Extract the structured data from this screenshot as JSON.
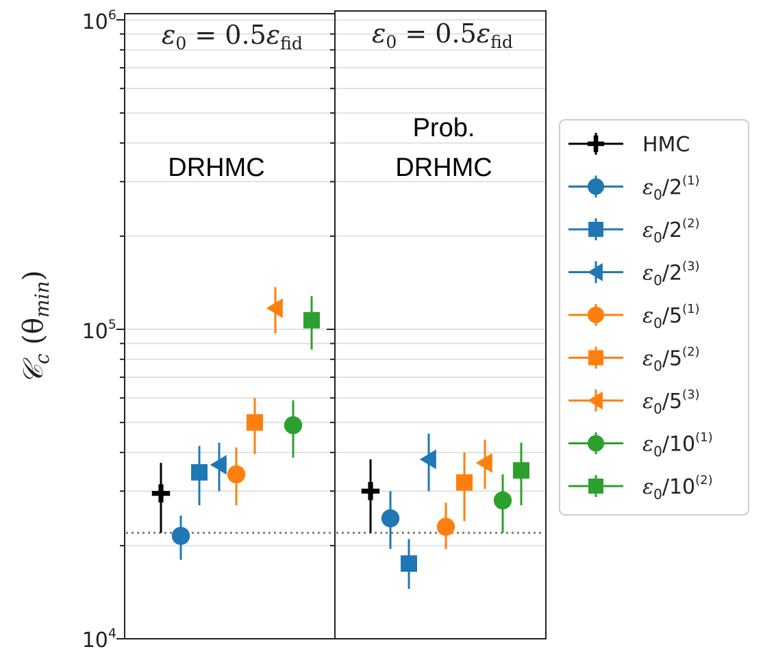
{
  "chart_data": {
    "type": "scatter",
    "yscale": "log",
    "ylim": [
      10000,
      1000000
    ],
    "ylabel": {
      "main": "𝒞",
      "sub1": "c",
      "open": " (θ",
      "sub2": "min",
      "close": ")"
    },
    "yticks": [
      {
        "value": 1000000,
        "base": "10",
        "exp": "6"
      },
      {
        "value": 100000,
        "base": "10",
        "exp": "5"
      },
      {
        "value": 10000,
        "base": "10",
        "exp": "4"
      }
    ],
    "grid": true,
    "legend_placement": "right",
    "reference_line": {
      "value": 22000,
      "style": "dotted",
      "color": "#7f7f7f"
    },
    "panels": [
      {
        "title": {
          "lhs": "ε",
          "lhs_sub": "0",
          "eq": " = 0.5",
          "rhs": "ε",
          "rhs_sub": "fid"
        },
        "annotation": [
          "DRHMC"
        ],
        "points": [
          {
            "series": 0,
            "y": 29500,
            "yerr_low": 22000,
            "yerr_high": 37000
          },
          {
            "series": 1,
            "y": 21500,
            "yerr_low": 18000,
            "yerr_high": 25000
          },
          {
            "series": 2,
            "y": 34500,
            "yerr_low": 27000,
            "yerr_high": 42000
          },
          {
            "series": 3,
            "y": 36500,
            "yerr_low": 30000,
            "yerr_high": 43000
          },
          {
            "series": 4,
            "y": 34000,
            "yerr_low": 27000,
            "yerr_high": 41500
          },
          {
            "series": 5,
            "y": 50000,
            "yerr_low": 39500,
            "yerr_high": 60000
          },
          {
            "series": 6,
            "y": 117000,
            "yerr_low": 97000,
            "yerr_high": 137000
          },
          {
            "series": 7,
            "y": 49000,
            "yerr_low": 38500,
            "yerr_high": 59000
          },
          {
            "series": 8,
            "y": 107000,
            "yerr_low": 86000,
            "yerr_high": 128000
          }
        ]
      },
      {
        "title": {
          "lhs": "ε",
          "lhs_sub": "0",
          "eq": " = 0.5",
          "rhs": "ε",
          "rhs_sub": "fid"
        },
        "annotation": [
          "Prob.",
          "DRHMC"
        ],
        "points": [
          {
            "series": 0,
            "y": 30000,
            "yerr_low": 22000,
            "yerr_high": 38000
          },
          {
            "series": 1,
            "y": 24500,
            "yerr_low": 19500,
            "yerr_high": 30000
          },
          {
            "series": 2,
            "y": 17500,
            "yerr_low": 14500,
            "yerr_high": 21000
          },
          {
            "series": 3,
            "y": 38000,
            "yerr_low": 30000,
            "yerr_high": 46000
          },
          {
            "series": 4,
            "y": 23000,
            "yerr_low": 19500,
            "yerr_high": 27500
          },
          {
            "series": 5,
            "y": 32000,
            "yerr_low": 24000,
            "yerr_high": 40000
          },
          {
            "series": 6,
            "y": 37000,
            "yerr_low": 30500,
            "yerr_high": 44000
          },
          {
            "series": 7,
            "y": 28000,
            "yerr_low": 22000,
            "yerr_high": 34000
          },
          {
            "series": 8,
            "y": 35000,
            "yerr_low": 27000,
            "yerr_high": 43000
          }
        ]
      }
    ],
    "series": [
      {
        "name": "HMC",
        "color": "#000000",
        "marker": "plus"
      },
      {
        "name": "ε0/2(1)",
        "label": {
          "sym": "ε",
          "sub": "0",
          "mid": "/2",
          "sup": "(1)"
        },
        "color": "#1f77b4",
        "marker": "circle"
      },
      {
        "name": "ε0/2(2)",
        "label": {
          "sym": "ε",
          "sub": "0",
          "mid": "/2",
          "sup": "(2)"
        },
        "color": "#1f77b4",
        "marker": "square"
      },
      {
        "name": "ε0/2(3)",
        "label": {
          "sym": "ε",
          "sub": "0",
          "mid": "/2",
          "sup": "(3)"
        },
        "color": "#1f77b4",
        "marker": "triangle-left"
      },
      {
        "name": "ε0/5(1)",
        "label": {
          "sym": "ε",
          "sub": "0",
          "mid": "/5",
          "sup": "(1)"
        },
        "color": "#ff7f0e",
        "marker": "circle"
      },
      {
        "name": "ε0/5(2)",
        "label": {
          "sym": "ε",
          "sub": "0",
          "mid": "/5",
          "sup": "(2)"
        },
        "color": "#ff7f0e",
        "marker": "square"
      },
      {
        "name": "ε0/5(3)",
        "label": {
          "sym": "ε",
          "sub": "0",
          "mid": "/5",
          "sup": "(3)"
        },
        "color": "#ff7f0e",
        "marker": "triangle-left"
      },
      {
        "name": "ε0/10(1)",
        "label": {
          "sym": "ε",
          "sub": "0",
          "mid": "/10",
          "sup": "(1)"
        },
        "color": "#2ca02c",
        "marker": "circle"
      },
      {
        "name": "ε0/10(2)",
        "label": {
          "sym": "ε",
          "sub": "0",
          "mid": "/10",
          "sup": "(2)"
        },
        "color": "#2ca02c",
        "marker": "square"
      }
    ]
  }
}
